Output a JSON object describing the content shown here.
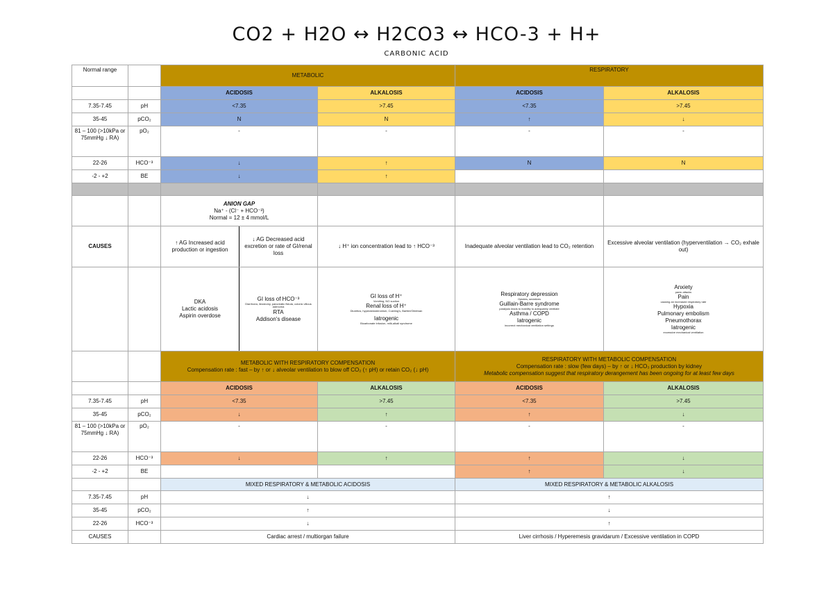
{
  "header": {
    "equation": "CO2  +  H2O  ↔  H2CO3  ↔  HCO-3  +  H+",
    "subtitle": "CARBONIC ACID"
  },
  "labels": {
    "normal_range": "Normal range",
    "metabolic": "METABOLIC",
    "respiratory": "RESPIRATORY",
    "acidosis": "ACIDOSIS",
    "alkalosis": "ALKALOSIS",
    "causes": "CAUSES"
  },
  "params": [
    {
      "range": "7.35-7.45",
      "name": "pH"
    },
    {
      "range": "35-45",
      "name": "pCO₂"
    },
    {
      "range": "81 – 100 (>10kPa or 75mmHg ↓ RA)",
      "name": "pO₂"
    },
    {
      "range": "22-26",
      "name": "HCO⁻³"
    },
    {
      "range": "-2 - +2",
      "name": "BE"
    }
  ],
  "table1": {
    "ph": [
      "<7.35",
      ">7.45",
      "<7.35",
      ">7.45"
    ],
    "pco2": [
      "N",
      "N",
      "↑",
      "↓"
    ],
    "po2": [
      "-",
      "-",
      "-",
      "-"
    ],
    "hco3": [
      "↓",
      "↑",
      "N",
      "N"
    ],
    "be": [
      "↓",
      "↑",
      "",
      ""
    ]
  },
  "anion_gap": {
    "title": "ANION GAP",
    "formula": "Na⁺ -  (Cl⁻ +  HCO⁻³)",
    "normal": "Normal = 12 ± 4 mmol/L"
  },
  "causes": {
    "high_ag": "↑ AG Increased acid production or ingestion",
    "normal_ag": "↓ AG Decreased acid excretion or rate of GI/renal loss",
    "met_alk": "↓ H⁺ ion concentration lead to ↑ HCO⁻³",
    "resp_acid": "Inadequate alveolar ventilation lead to CO₂ retention",
    "resp_alk": "Excessive alveolar ventilation (hyperventilation → CO₂ exhale out)"
  },
  "examples": {
    "high_ag": [
      "DKA",
      "Lactic acidosis",
      "Aspirin overdose"
    ],
    "normal_ag": {
      "gi": "GI loss of HCO⁻³",
      "gi_sub": "Diarrhoea, ileostomy, pancreatic fistula, colonic villous adenoma",
      "rta": "RTA",
      "addison": "Addison's disease"
    },
    "met_alk": {
      "gi": "GI loss of H⁺",
      "gi_sub": "Vomiting, NG suction",
      "renal": "Renal loss of H⁺",
      "renal_sub": "Diuretics, hyperaldosteronism, Cushing's, Bartter/Gitelman",
      "iat": "Iatrogenic",
      "iat_sub": "Bicarbonate infusion, milk-alkali syndrome"
    },
    "resp_acid": {
      "dep": "Respiratory depression",
      "dep_sub": "Opiates, sedatives",
      "gbs": "Guillain-Barre syndrome",
      "gbs_sub": "paralysis leads to inability to adequately ventilate",
      "copd": "Asthma / COPD",
      "iat": "Iatrogenic",
      "iat_sub": "incorrect mechanical ventilation settings"
    },
    "resp_alk": {
      "anx": "Anxiety",
      "anx_sub": "panic attacks",
      "pain": "Pain",
      "pain_sub": "causing an increased respiratory rate",
      "hyp": "Hypoxia",
      "pe": "Pulmonary embolism",
      "ptx": "Pneumothorax",
      "iat": "Iatrogenic",
      "iat_sub": "excessive mechanical ventilation"
    }
  },
  "comp": {
    "met_title": "METABOLIC WITH RESPIRATORY COMPENSATION",
    "met_rate": "Compensation rate : fast – by ↑ or ↓ alveolar ventilation to blow off CO₂ (↑ pH) or retain CO₂ (↓ pH)",
    "resp_title": "RESPIRATORY WITH METABOLIC COMPENSATION",
    "resp_rate": "Compensation rate : slow (few days) – by ↑ or ↓ HCO₃ production by kidney",
    "resp_note": "Metabolic compensation suggest that respiratory derangement has been ongoing for at least few days",
    "ph": [
      "<7.35",
      ">7.45",
      "<7.35",
      ">7.45"
    ],
    "pco2": [
      "↓",
      "↑",
      "↑",
      "↓"
    ],
    "po2": [
      "-",
      "-",
      "-",
      "-"
    ],
    "hco3": [
      "↓",
      "↑",
      "↑",
      "↓"
    ],
    "be": [
      "",
      "",
      "↑",
      "↓"
    ]
  },
  "mixed": {
    "acid_title": "MIXED RESPIRATORY & METABOLIC ACIDOSIS",
    "alk_title": "MIXED RESPIRATORY & METABOLIC ALKALOSIS",
    "ph": [
      "↓",
      "↑"
    ],
    "pco2": [
      "↑",
      "↓"
    ],
    "hco3": [
      "↓",
      "↑"
    ],
    "causes_acid": "Cardiac arrest / multiorgan failure",
    "causes_alk": "Liver cirrhosis / Hyperemesis gravidarum / Excessive ventilation in COPD"
  },
  "colors": {
    "gold": "#bf9000",
    "blue": "#8eaadb",
    "yellow": "#ffd966",
    "grey": "#bfbfbf",
    "orange": "#f4b183",
    "green": "#c5e0b3",
    "light_blue": "#deebf7"
  }
}
